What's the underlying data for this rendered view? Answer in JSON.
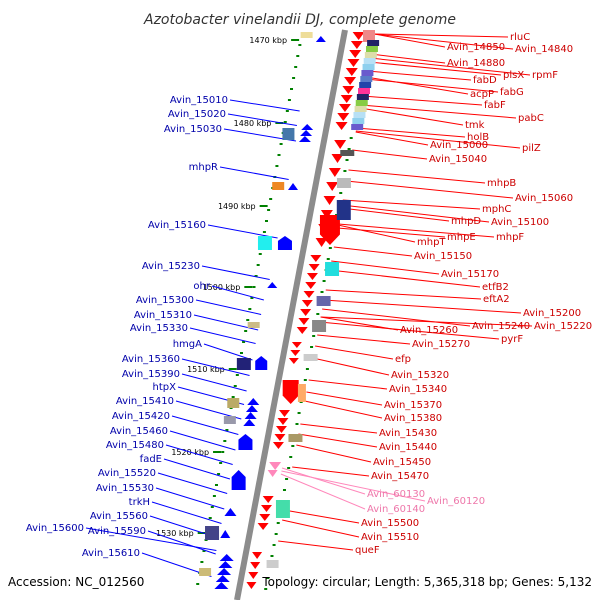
{
  "title": "Azotobacter vinelandii DJ, complete genome",
  "accession_text": "Accession: NC_012560",
  "topology_text": "Topology: circular; Length: 5,365,318 bp; Genes: 5,132",
  "colors": {
    "backbone": "#8c8c8c",
    "tick": "#008000",
    "forward": "#0000ff",
    "reverse": "#ff0000",
    "rna": "#ff88bb",
    "label_forward": "#0000aa",
    "label_reverse": "#cc0000",
    "label_rna": "#ee77aa"
  },
  "ticks": [
    "1470 kbp",
    "1480 kbp",
    "1490 kbp",
    "1500 kbp",
    "1510 kbp",
    "1520 kbp",
    "1530 kbp"
  ],
  "forward_labels": [
    "Avin_15010",
    "Avin_15020",
    "Avin_15030",
    "mhpR",
    "Avin_15160",
    "Avin_15230",
    "ohr",
    "Avin_15300",
    "Avin_15310",
    "Avin_15330",
    "hmgA",
    "Avin_15360",
    "Avin_15390",
    "htpX",
    "Avin_15410",
    "Avin_15420",
    "Avin_15460",
    "Avin_15480",
    "fadE",
    "Avin_15520",
    "Avin_15530",
    "trkH",
    "Avin_15560",
    "Avin_15600",
    "Avin_15590",
    "Avin_15610"
  ],
  "reverse_labels": [
    "rluC",
    "Avin_14850",
    "Avin_14840",
    "Avin_14880",
    "plsX",
    "rpmF",
    "fabD",
    "fabG",
    "acpP",
    "fabF",
    "pabC",
    "tmk",
    "holB",
    "Avin_15000",
    "pilZ",
    "Avin_15040",
    "mhpB",
    "Avin_15060",
    "mphC",
    "mhpD",
    "Avin_15100",
    "mhpE",
    "mhpF",
    "mhpT",
    "Avin_15150",
    "Avin_15170",
    "etfB2",
    "eftA2",
    "Avin_15200",
    "Avin_15240",
    "Avin_15220",
    "Avin_15260",
    "pyrF",
    "Avin_15270",
    "efp",
    "Avin_15320",
    "Avin_15340",
    "Avin_15370",
    "Avin_15380",
    "Avin_15430",
    "Avin_15440",
    "Avin_15450",
    "Avin_15470",
    "Avin_15500",
    "Avin_15510",
    "queF"
  ],
  "rna_labels": [
    "Avin_60130",
    "Avin_60120",
    "Avin_60140"
  ]
}
